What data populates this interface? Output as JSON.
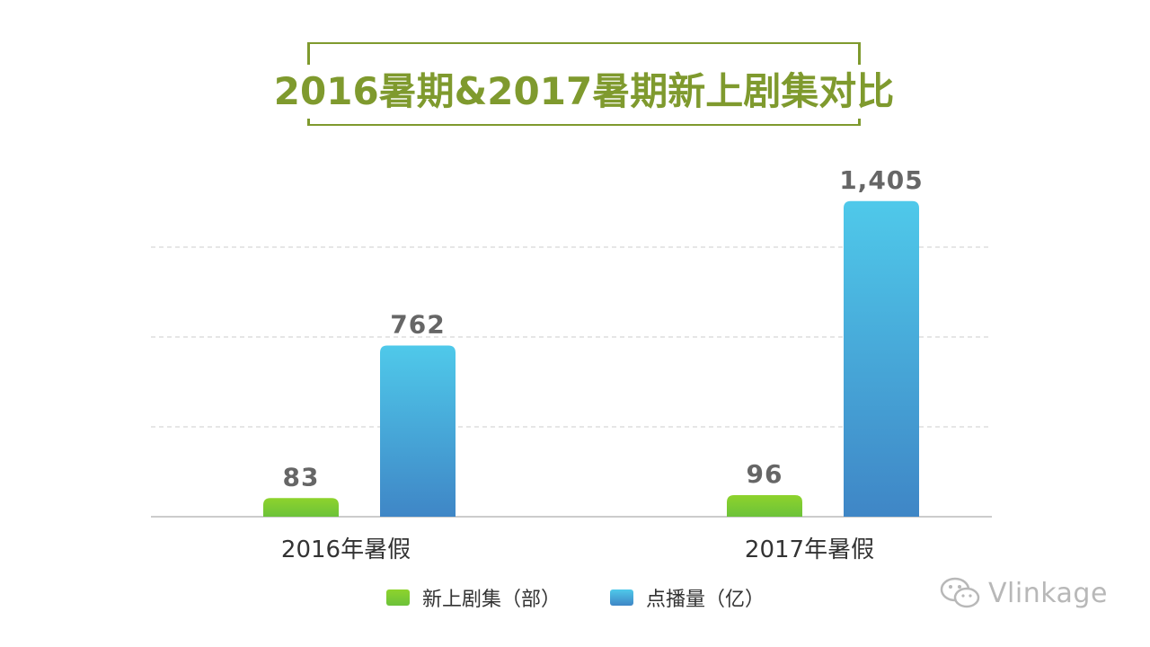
{
  "chart_data": {
    "type": "bar",
    "title": "2016暑期&2017暑期新上剧集对比",
    "categories": [
      "2016年暑假",
      "2017年暑假"
    ],
    "series": [
      {
        "name": "新上剧集（部）",
        "values": [
          83,
          96
        ],
        "data_labels": [
          "83",
          "96"
        ],
        "color_top": "#8ed32c",
        "color_bottom": "#6cc23a"
      },
      {
        "name": "点播量（亿）",
        "values": [
          762,
          1405
        ],
        "data_labels": [
          "762",
          "1,405"
        ],
        "color_top": "#4fc9ea",
        "color_bottom": "#3f86c6"
      }
    ],
    "ylim": [
      0,
      1600
    ],
    "grid": true,
    "y_axis_labels_shown": false,
    "legend_position": "bottom"
  },
  "colors": {
    "title": "#7f9a2e",
    "value_label": "#666666",
    "category_label": "#333333",
    "grid": "#cccccc"
  },
  "watermark": {
    "text": "Vlinkage",
    "icon": "wechat-icon"
  }
}
